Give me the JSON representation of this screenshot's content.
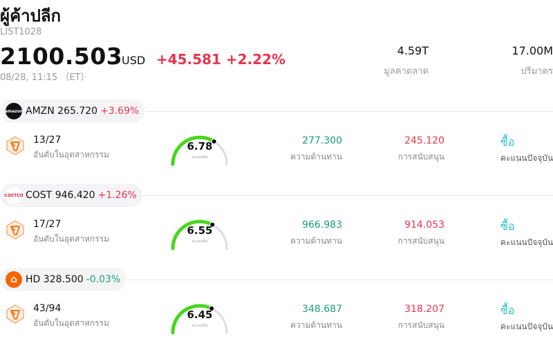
{
  "header": {
    "title": "ผู้ค้าปลีก",
    "code": "LIST1028",
    "price": "2100.503",
    "currency": "USD",
    "change": "+45.581 +2.22%",
    "time": "08/28, 11:15 （ET）"
  },
  "stats": [
    {
      "value": "4.59T",
      "label": "มูลค่าตลาด"
    },
    {
      "value": "17.00M",
      "label": "ปริมาตร"
    }
  ],
  "labels": {
    "rank": "อันดับในอุตสาหกรรม",
    "score": "คะแนนหุ้น",
    "resistance": "ความต้านทาน",
    "support": "การสนับสนุน",
    "rating": "คะแนนปัจจุบัน"
  },
  "stocks": [
    {
      "ticker": "AMZN",
      "price": "265.720",
      "change": "+3.69%",
      "direction": "up",
      "logo_icon": "amazon-logo",
      "rank": "13/27",
      "score": 6.78,
      "score_text": "6.78",
      "resistance": "277.300",
      "support": "245.120",
      "rating": "ซื้อ"
    },
    {
      "ticker": "COST",
      "price": "946.420",
      "change": "+1.26%",
      "direction": "up",
      "logo_icon": "costco-logo",
      "rank": "17/27",
      "score": 6.55,
      "score_text": "6.55",
      "resistance": "966.983",
      "support": "914.053",
      "rating": "ซื้อ"
    },
    {
      "ticker": "HD",
      "price": "328.500",
      "change": "-0.03%",
      "direction": "down",
      "logo_icon": "home-depot-logo",
      "rank": "43/94",
      "score": 6.45,
      "score_text": "6.45",
      "resistance": "348.687",
      "support": "318.207",
      "rating": "ซื้อ"
    }
  ],
  "colors": {
    "up": "#e8344e",
    "down": "#1a9e7e",
    "gauge": "#47d61c",
    "gauge_track": "#dcdce6",
    "rating": "#2bbfc9"
  }
}
